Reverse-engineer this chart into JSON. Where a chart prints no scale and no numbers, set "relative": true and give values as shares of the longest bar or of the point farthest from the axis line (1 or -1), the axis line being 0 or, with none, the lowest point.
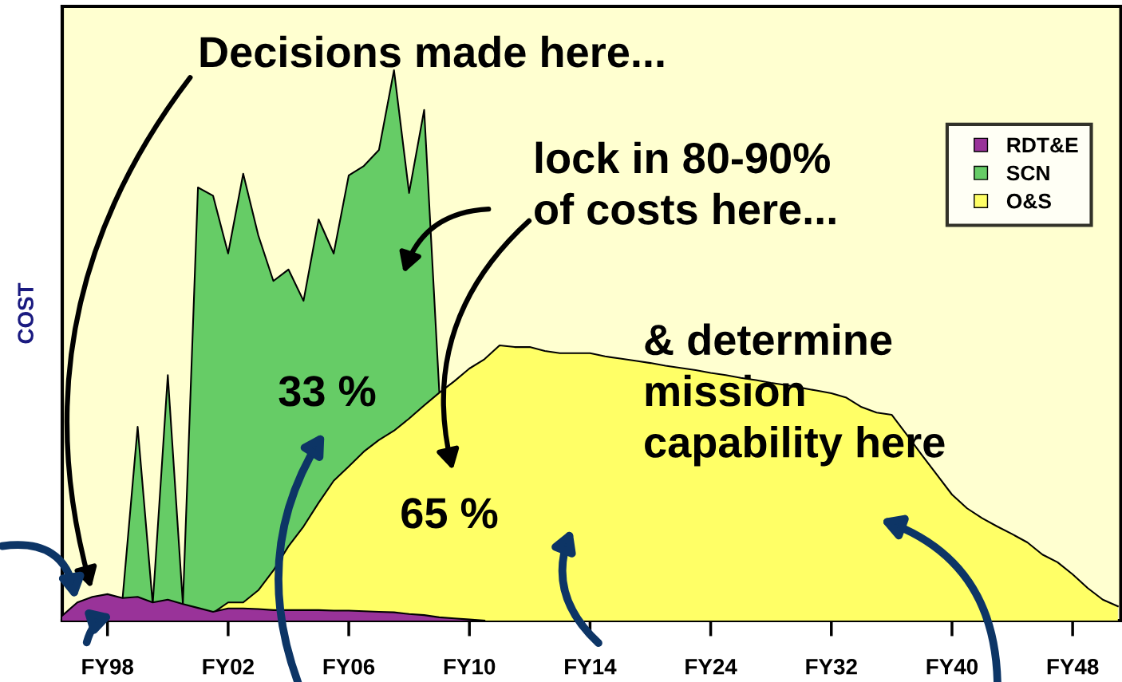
{
  "chart_data": {
    "type": "area",
    "relative": true,
    "ylabel": "COST",
    "legend": "top right",
    "grid": false,
    "categories": [
      null,
      null,
      null,
      "FY98",
      null,
      null,
      null,
      null,
      null,
      null,
      null,
      "FY02",
      null,
      null,
      null,
      null,
      null,
      null,
      null,
      "FY06",
      null,
      null,
      null,
      null,
      null,
      null,
      null,
      "FY10",
      null,
      null,
      null,
      null,
      null,
      null,
      null,
      "FY14",
      null,
      null,
      null,
      null,
      null,
      null,
      null,
      "FY24",
      null,
      null,
      null,
      null,
      null,
      null,
      null,
      "FY32",
      null,
      null,
      null,
      null,
      null,
      null,
      null,
      "FY40",
      null,
      null,
      null,
      null,
      null,
      null,
      null,
      "FY48",
      null,
      null,
      null
    ],
    "series": [
      {
        "name": "RDT&E",
        "color": "#993399",
        "values": [
          0.009,
          0.033,
          0.043,
          0.048,
          0.041,
          0.043,
          0.033,
          0.038,
          0.03,
          0.023,
          0.016,
          0.022,
          0.022,
          0.021,
          0.019,
          0.019,
          0.019,
          0.019,
          0.018,
          0.018,
          0.017,
          0.016,
          0.015,
          0.012,
          0.01,
          0.006,
          0.004,
          0.002,
          0,
          null,
          null,
          null,
          null,
          null,
          null,
          null,
          null,
          null,
          null,
          null,
          null,
          null,
          null,
          null,
          null,
          null,
          null,
          null,
          null,
          null,
          null,
          null,
          null,
          null,
          null,
          null,
          null,
          null,
          null,
          null,
          null,
          null,
          null,
          null,
          null,
          null,
          null,
          null,
          null,
          null,
          null
        ]
      },
      {
        "name": "SCN",
        "color": "#66cc66",
        "values": [
          0.005,
          0.03,
          0.04,
          0.04,
          0.04,
          0.352,
          0.03,
          0.446,
          0.03,
          0.787,
          0.772,
          0.667,
          0.812,
          0.7,
          0.617,
          0.638,
          0.581,
          0.729,
          0.667,
          0.809,
          0.826,
          0.855,
          1,
          0.777,
          0.928,
          0.417,
          null,
          null,
          null,
          null,
          null,
          null,
          null,
          null,
          null,
          null,
          null,
          null,
          null,
          null,
          null,
          null,
          null,
          null,
          null,
          null,
          null,
          null,
          null,
          null,
          null,
          null,
          null,
          null,
          null,
          null,
          null,
          null,
          null,
          null,
          null,
          null,
          null,
          null,
          null,
          null,
          null,
          null,
          null,
          null,
          null
        ]
      },
      {
        "name": "O&S",
        "color": "#ffff66",
        "values": [
          null,
          null,
          null,
          null,
          null,
          null,
          null,
          null,
          null,
          null,
          0.014,
          0.033,
          0.033,
          0.055,
          0.091,
          0.135,
          0.171,
          0.214,
          0.254,
          0.28,
          0.307,
          0.328,
          0.345,
          0.367,
          0.391,
          0.414,
          0.435,
          0.458,
          0.475,
          0.5,
          0.497,
          0.497,
          0.49,
          0.486,
          0.486,
          0.486,
          0.48,
          0.476,
          0.472,
          0.468,
          0.463,
          0.459,
          0.455,
          0.45,
          0.446,
          0.441,
          0.437,
          0.432,
          0.428,
          0.423,
          0.418,
          0.413,
          0.405,
          0.388,
          0.378,
          0.374,
          0.338,
          0.301,
          0.265,
          0.229,
          0.204,
          0.186,
          0.171,
          0.157,
          0.142,
          0.12,
          0.106,
          0.084,
          0.059,
          0.038,
          0.026
        ]
      }
    ],
    "annotations": [
      "Decisions made here...",
      "lock in 80-90%\nof costs here...",
      "& determine\nmission\ncapability here",
      "33 %",
      "65 %"
    ]
  }
}
